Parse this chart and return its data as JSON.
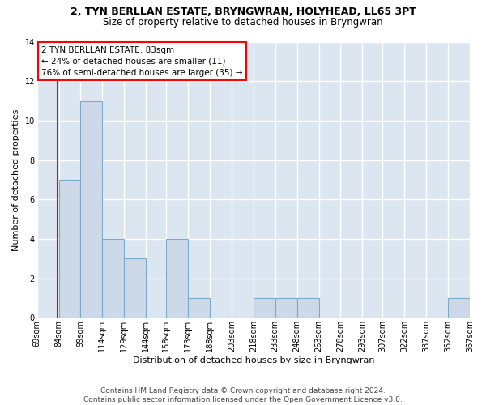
{
  "title": "2, TYN BERLLAN ESTATE, BRYNGWRAN, HOLYHEAD, LL65 3PT",
  "subtitle": "Size of property relative to detached houses in Bryngwran",
  "xlabel": "Distribution of detached houses by size in Bryngwran",
  "ylabel": "Number of detached properties",
  "bin_edges": [
    69,
    84,
    99,
    114,
    129,
    144,
    158,
    173,
    188,
    203,
    218,
    233,
    248,
    263,
    278,
    293,
    307,
    322,
    337,
    352,
    367
  ],
  "bin_labels": [
    "69sqm",
    "84sqm",
    "99sqm",
    "114sqm",
    "129sqm",
    "144sqm",
    "158sqm",
    "173sqm",
    "188sqm",
    "203sqm",
    "218sqm",
    "233sqm",
    "248sqm",
    "263sqm",
    "278sqm",
    "293sqm",
    "307sqm",
    "322sqm",
    "337sqm",
    "352sqm",
    "367sqm"
  ],
  "counts": [
    0,
    7,
    11,
    4,
    3,
    0,
    4,
    1,
    0,
    0,
    1,
    1,
    1,
    0,
    0,
    0,
    0,
    0,
    0,
    1
  ],
  "bar_color": "#cdd9e8",
  "bar_edge_color": "#7aaac8",
  "red_line_x": 83,
  "annotation_text": "2 TYN BERLLAN ESTATE: 83sqm\n← 24% of detached houses are smaller (11)\n76% of semi-detached houses are larger (35) →",
  "ylim": [
    0,
    14
  ],
  "yticks": [
    0,
    2,
    4,
    6,
    8,
    10,
    12,
    14
  ],
  "footer": "Contains HM Land Registry data © Crown copyright and database right 2024.\nContains public sector information licensed under the Open Government Licence v3.0.",
  "fig_background": "#ffffff",
  "axes_background": "#dce6f0",
  "grid_color": "#ffffff",
  "title_fontsize": 9,
  "subtitle_fontsize": 8.5,
  "ylabel_fontsize": 8,
  "xlabel_fontsize": 8,
  "tick_fontsize": 7,
  "footer_fontsize": 6.5
}
